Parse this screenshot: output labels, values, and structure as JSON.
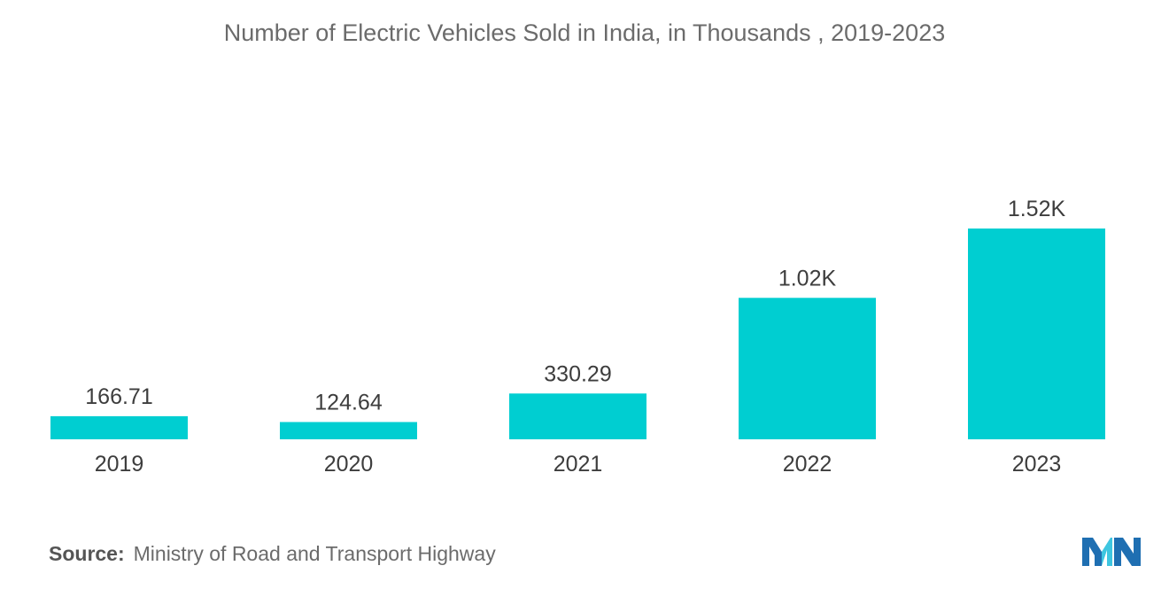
{
  "chart_data": {
    "type": "bar",
    "title": "Number of Electric Vehicles Sold in India, in Thousands , 2019-2023",
    "categories": [
      "2019",
      "2020",
      "2021",
      "2022",
      "2023"
    ],
    "values": [
      166.71,
      124.64,
      330.29,
      1020,
      1520
    ],
    "data_labels": [
      "166.71",
      "124.64",
      "330.29",
      "1.02K",
      "1.52K"
    ],
    "xlabel": "",
    "ylabel": "",
    "ylim": [
      0,
      1520
    ],
    "grid": false,
    "bar_color": "#00CED1"
  },
  "source": {
    "label": "Source:",
    "text": "Ministry of Road and Transport Highway"
  },
  "logo": {
    "icon": "mordor-intelligence-logo-icon",
    "colors": [
      "#1f6fb2",
      "#3ec6e0"
    ]
  }
}
